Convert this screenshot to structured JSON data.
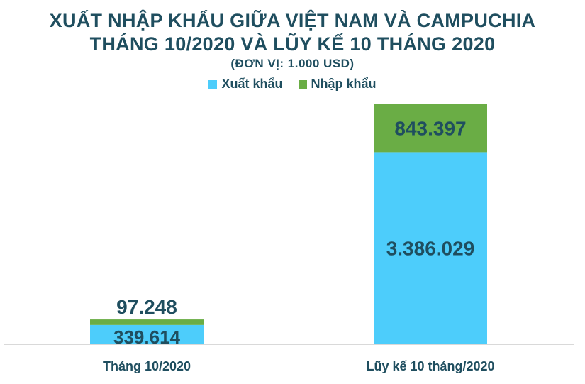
{
  "header": {
    "title_line1": "XUẤT NHẬP KHẨU GIỮA VIỆT NAM VÀ CAMPUCHIA",
    "title_line2": "THÁNG 10/2020 VÀ LŨY KẾ 10 THÁNG 2020",
    "unit": "(ĐƠN VỊ: 1.000 USD)"
  },
  "legend": [
    {
      "label": "Xuất khẩu",
      "color": "#4dcdfb"
    },
    {
      "label": "Nhập khẩu",
      "color": "#6aad45"
    }
  ],
  "chart_data": {
    "type": "bar",
    "stacked": true,
    "categories": [
      "Tháng 10/2020",
      "Lũy kế 10 tháng/2020"
    ],
    "series": [
      {
        "name": "Xuất khẩu",
        "color": "#4dcdfb",
        "values": [
          339614,
          3386029
        ],
        "value_labels": [
          "339.614",
          "3.386.029"
        ]
      },
      {
        "name": "Nhập khẩu",
        "color": "#6aad45",
        "values": [
          97248,
          843397
        ],
        "value_labels": [
          "97.248",
          "843.397"
        ]
      }
    ],
    "legend_position": "top",
    "grid": false
  }
}
